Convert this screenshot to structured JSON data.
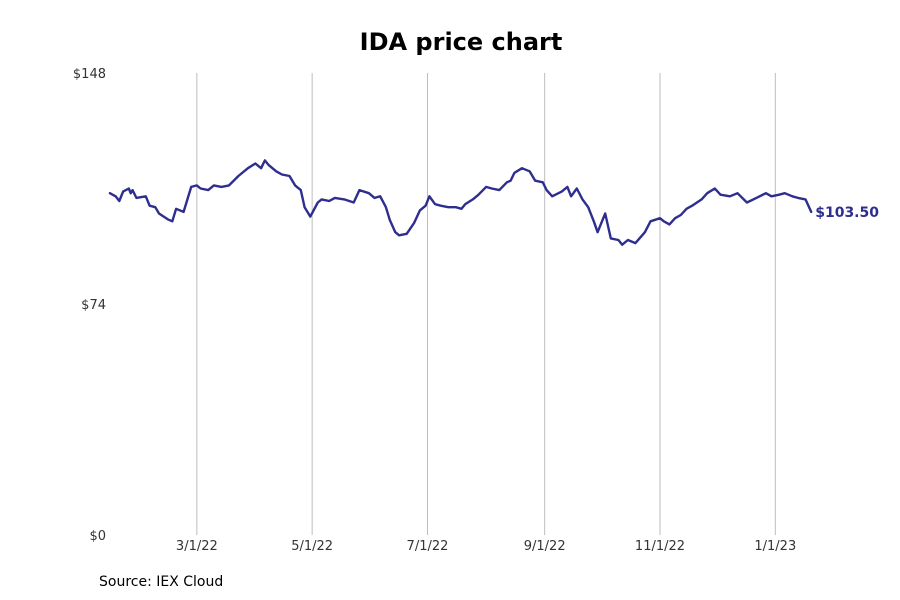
{
  "chart_data": {
    "type": "line",
    "title": "IDA price chart",
    "source": "Source: IEX Cloud",
    "xlabel": "",
    "ylabel": "",
    "ylim": [
      0,
      148
    ],
    "y_ticks": [
      0,
      74,
      148
    ],
    "y_tick_labels": [
      "$0",
      "$74",
      "$148"
    ],
    "x_ticks": [
      "2022-03-01",
      "2022-05-01",
      "2022-07-01",
      "2022-09-01",
      "2022-11-01",
      "2023-01-01"
    ],
    "x_tick_labels": [
      "3/1/22",
      "5/1/22",
      "7/1/22",
      "9/1/22",
      "11/1/22",
      "1/1/23"
    ],
    "x_range": [
      "2022-01-13",
      "2023-01-22"
    ],
    "grid": {
      "x": true,
      "y": false
    },
    "line_color": "#2e2e8f",
    "last_value_label": "$103.50",
    "series": [
      {
        "values": [
          [
            "2022-01-14",
            109.5
          ],
          [
            "2022-01-17",
            108.5
          ],
          [
            "2022-01-19",
            107.0
          ],
          [
            "2022-01-21",
            110.0
          ],
          [
            "2022-01-24",
            111.0
          ],
          [
            "2022-01-25",
            109.5
          ],
          [
            "2022-01-26",
            110.5
          ],
          [
            "2022-01-28",
            108.0
          ],
          [
            "2022-02-02",
            108.5
          ],
          [
            "2022-02-04",
            105.5
          ],
          [
            "2022-02-07",
            105.0
          ],
          [
            "2022-02-09",
            103.0
          ],
          [
            "2022-02-14",
            101.0
          ],
          [
            "2022-02-16",
            100.5
          ],
          [
            "2022-02-18",
            104.5
          ],
          [
            "2022-02-22",
            103.5
          ],
          [
            "2022-02-24",
            107.5
          ],
          [
            "2022-02-26",
            111.5
          ],
          [
            "2022-03-01",
            112.0
          ],
          [
            "2022-03-03",
            111.0
          ],
          [
            "2022-03-07",
            110.5
          ],
          [
            "2022-03-10",
            112.0
          ],
          [
            "2022-03-14",
            111.5
          ],
          [
            "2022-03-18",
            112.0
          ],
          [
            "2022-03-23",
            115.0
          ],
          [
            "2022-03-28",
            117.5
          ],
          [
            "2022-04-01",
            119.0
          ],
          [
            "2022-04-04",
            117.5
          ],
          [
            "2022-04-06",
            120.0
          ],
          [
            "2022-04-08",
            118.5
          ],
          [
            "2022-04-12",
            116.5
          ],
          [
            "2022-04-15",
            115.5
          ],
          [
            "2022-04-19",
            115.0
          ],
          [
            "2022-04-22",
            112.0
          ],
          [
            "2022-04-25",
            110.5
          ],
          [
            "2022-04-27",
            105.0
          ],
          [
            "2022-04-30",
            102.0
          ],
          [
            "2022-05-04",
            106.5
          ],
          [
            "2022-05-06",
            107.5
          ],
          [
            "2022-05-10",
            107.0
          ],
          [
            "2022-05-13",
            108.0
          ],
          [
            "2022-05-18",
            107.5
          ],
          [
            "2022-05-23",
            106.5
          ],
          [
            "2022-05-26",
            110.5
          ],
          [
            "2022-05-31",
            109.5
          ],
          [
            "2022-06-03",
            108.0
          ],
          [
            "2022-06-06",
            108.5
          ],
          [
            "2022-06-09",
            105.0
          ],
          [
            "2022-06-11",
            101.0
          ],
          [
            "2022-06-14",
            97.0
          ],
          [
            "2022-06-16",
            96.0
          ],
          [
            "2022-06-20",
            96.5
          ],
          [
            "2022-06-24",
            100.0
          ],
          [
            "2022-06-27",
            104.0
          ],
          [
            "2022-06-30",
            105.5
          ],
          [
            "2022-07-02",
            108.5
          ],
          [
            "2022-07-05",
            106.0
          ],
          [
            "2022-07-08",
            105.5
          ],
          [
            "2022-07-12",
            105.0
          ],
          [
            "2022-07-16",
            105.0
          ],
          [
            "2022-07-19",
            104.5
          ],
          [
            "2022-07-21",
            106.0
          ],
          [
            "2022-07-25",
            107.5
          ],
          [
            "2022-07-28",
            109.0
          ],
          [
            "2022-08-01",
            111.5
          ],
          [
            "2022-08-04",
            111.0
          ],
          [
            "2022-08-08",
            110.5
          ],
          [
            "2022-08-12",
            113.0
          ],
          [
            "2022-08-14",
            113.5
          ],
          [
            "2022-08-16",
            116.0
          ],
          [
            "2022-08-20",
            117.5
          ],
          [
            "2022-08-24",
            116.5
          ],
          [
            "2022-08-27",
            113.5
          ],
          [
            "2022-08-31",
            113.0
          ],
          [
            "2022-09-02",
            110.5
          ],
          [
            "2022-09-05",
            108.5
          ],
          [
            "2022-09-10",
            110.0
          ],
          [
            "2022-09-13",
            111.5
          ],
          [
            "2022-09-15",
            108.5
          ],
          [
            "2022-09-18",
            111.0
          ],
          [
            "2022-09-21",
            107.5
          ],
          [
            "2022-09-24",
            105.0
          ],
          [
            "2022-09-27",
            100.5
          ],
          [
            "2022-09-29",
            97.0
          ],
          [
            "2022-10-03",
            103.0
          ],
          [
            "2022-10-06",
            95.0
          ],
          [
            "2022-10-10",
            94.5
          ],
          [
            "2022-10-12",
            93.0
          ],
          [
            "2022-10-15",
            94.5
          ],
          [
            "2022-10-19",
            93.5
          ],
          [
            "2022-10-24",
            97.0
          ],
          [
            "2022-10-27",
            100.5
          ],
          [
            "2022-11-01",
            101.5
          ],
          [
            "2022-11-03",
            100.5
          ],
          [
            "2022-11-06",
            99.5
          ],
          [
            "2022-11-09",
            101.5
          ],
          [
            "2022-11-12",
            102.5
          ],
          [
            "2022-11-15",
            104.5
          ],
          [
            "2022-11-18",
            105.5
          ],
          [
            "2022-11-23",
            107.5
          ],
          [
            "2022-11-26",
            109.5
          ],
          [
            "2022-11-30",
            111.0
          ],
          [
            "2022-12-03",
            109.0
          ],
          [
            "2022-12-08",
            108.5
          ],
          [
            "2022-12-12",
            109.5
          ],
          [
            "2022-12-17",
            106.5
          ],
          [
            "2022-12-22",
            108.0
          ],
          [
            "2022-12-27",
            109.5
          ],
          [
            "2022-12-30",
            108.5
          ],
          [
            "2023-01-03",
            109.0
          ],
          [
            "2023-01-06",
            109.5
          ],
          [
            "2023-01-10",
            108.5
          ],
          [
            "2023-01-13",
            108.0
          ],
          [
            "2023-01-17",
            107.5
          ],
          [
            "2023-01-20",
            103.5
          ]
        ]
      }
    ]
  }
}
